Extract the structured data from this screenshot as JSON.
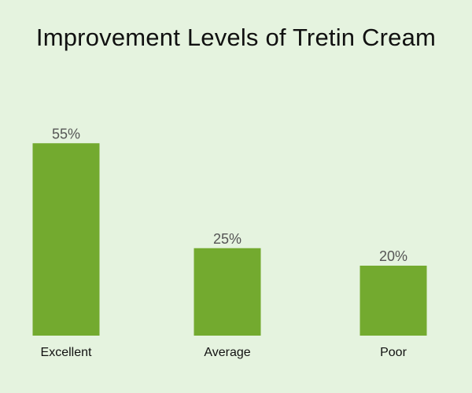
{
  "chart_data": {
    "type": "bar",
    "title": "Improvement Levels of Tretin Cream",
    "categories": [
      "Excellent",
      "Average",
      "Poor"
    ],
    "values": [
      55,
      25,
      20
    ],
    "data_labels": [
      "55%",
      "25%",
      "20%"
    ],
    "xlabel": "",
    "ylabel": "",
    "ylim": [
      0,
      60
    ],
    "grid": false,
    "legend": "none",
    "colors": {
      "background": "#e5f3df",
      "bar": "#73aa2f"
    }
  }
}
